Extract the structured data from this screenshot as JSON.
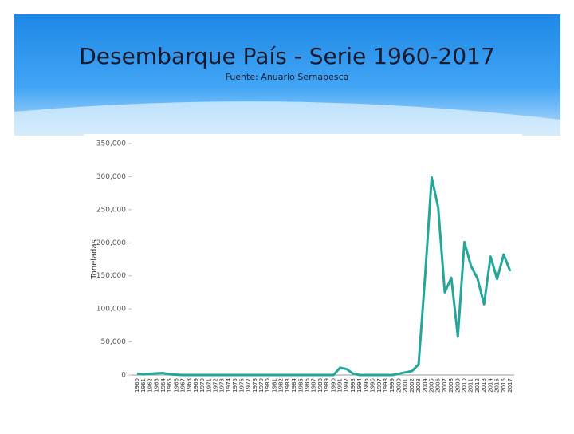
{
  "chart_data": {
    "type": "line",
    "title": "Desembarque País - Serie 1960-2017",
    "subtitle": "Fuente: Anuario Sernapesca",
    "y_label": "Toneladas",
    "categories": [
      "1960",
      "1961",
      "1962",
      "1963",
      "1964",
      "1965",
      "1966",
      "1967",
      "1968",
      "1969",
      "1970",
      "1971",
      "1972",
      "1973",
      "1974",
      "1975",
      "1976",
      "1977",
      "1978",
      "1979",
      "1980",
      "1981",
      "1982",
      "1983",
      "1984",
      "1985",
      "1986",
      "1987",
      "1988",
      "1989",
      "1990",
      "1991",
      "1992",
      "1993",
      "1994",
      "1995",
      "1996",
      "1997",
      "1998",
      "1999",
      "2000",
      "2001",
      "2002",
      "2003",
      "2004",
      "2005",
      "2006",
      "2007",
      "2008",
      "2009",
      "2010",
      "2011",
      "2012",
      "2013",
      "2014",
      "2015",
      "2016",
      "2017"
    ],
    "values": [
      2000,
      1000,
      2000,
      2500,
      3000,
      1000,
      500,
      0,
      0,
      0,
      0,
      0,
      0,
      0,
      0,
      0,
      0,
      0,
      0,
      0,
      0,
      0,
      0,
      0,
      0,
      0,
      0,
      0,
      0,
      0,
      0,
      11000,
      9000,
      2000,
      0,
      0,
      0,
      0,
      0,
      0,
      2000,
      4000,
      6000,
      16000,
      150000,
      299000,
      253000,
      125000,
      147000,
      58000,
      201000,
      165000,
      146000,
      107000,
      179000,
      145000,
      182000,
      157000
    ],
    "color": "#26a69a",
    "ylim": [
      0,
      350000
    ],
    "yticks": [
      0,
      {
        "value": 50000,
        "label": "50,000"
      },
      {
        "value": 100000,
        "label": "100,000"
      },
      {
        "value": 150000,
        "label": "150,000"
      },
      {
        "value": 200000,
        "label": "200,000"
      },
      {
        "value": 250000,
        "label": "250,000"
      },
      {
        "value": 300000,
        "label": "300,000"
      },
      {
        "value": 350000,
        "label": "350,000"
      }
    ],
    "grid": false
  }
}
